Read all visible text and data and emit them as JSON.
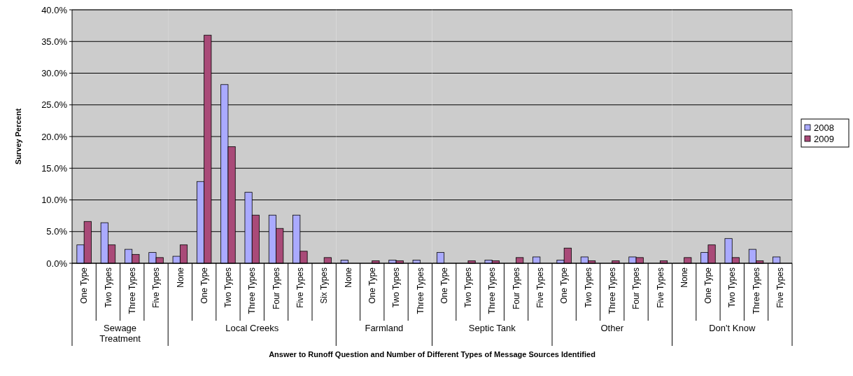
{
  "chart_data": [
    {
      "type": "bar",
      "xlabel": "Sewage Treatment",
      "ylabel": "Survey Percent",
      "categories": [
        "One Type",
        "Two Types",
        "Three Types",
        "Five Types"
      ],
      "series": [
        {
          "color": "#aaaaff",
          "values": [
            2.9,
            6.4,
            2.2,
            1.7
          ]
        },
        {
          "color": "#a94a78",
          "values": [
            6.6,
            2.9,
            1.4,
            0.9
          ]
        }
      ],
      "annotations": [
        "Answer to Runoff Question and Number of Different Types of Message Sources Identified"
      ],
      "ylim": [
        0,
        40
      ],
      "yticks": [
        {
          "value": 0,
          "label": "0.0%"
        },
        {
          "value": 5,
          "label": "5.0%"
        },
        {
          "value": 10,
          "label": "10.0%"
        },
        {
          "value": 15,
          "label": "15.0%"
        },
        {
          "value": 20,
          "label": "20.0%"
        },
        {
          "value": 25,
          "label": "25.0%"
        },
        {
          "value": 30,
          "label": "30.0%"
        },
        {
          "value": 35,
          "label": "35.0%"
        },
        {
          "value": 40,
          "label": "40.0%"
        }
      ],
      "grid": "y"
    },
    {
      "type": "bar",
      "xlabel": "Local Creeks",
      "categories": [
        "None",
        "One Type",
        "Two Types",
        "Three Types",
        "Four Types",
        "Five Types",
        "Six Types"
      ],
      "series": [
        {
          "color": "#aaaaff",
          "values": [
            1.1,
            12.9,
            28.2,
            11.2,
            7.6,
            7.6,
            0
          ]
        },
        {
          "color": "#a94a78",
          "values": [
            2.9,
            36.0,
            18.4,
            7.6,
            5.5,
            1.9,
            0.9
          ]
        }
      ],
      "ylim": [
        0,
        40
      ],
      "yticks": [
        0,
        5,
        10,
        15,
        20,
        25,
        30,
        35,
        40
      ],
      "grid": "y",
      "tick_labels": "x"
    },
    {
      "type": "bar",
      "xlabel": "Farmland",
      "categories": [
        "None",
        "One Type",
        "Two Types",
        "Three Types"
      ],
      "series": [
        {
          "color": "#aaaaff",
          "values": [
            0.5,
            0,
            0.5,
            0.5
          ]
        },
        {
          "color": "#a94a78",
          "values": [
            0,
            0.4,
            0.4,
            0
          ]
        }
      ],
      "ylim": [
        0,
        40
      ],
      "yticks": [
        0,
        5,
        10,
        15,
        20,
        25,
        30,
        35,
        40
      ],
      "grid": "y",
      "tick_labels": "x"
    },
    {
      "type": "bar",
      "xlabel": "Septic Tank",
      "categories": [
        "One Type",
        "Two Types",
        "Three Types",
        "Four Types",
        "Five Types"
      ],
      "series": [
        {
          "color": "#aaaaff",
          "values": [
            1.7,
            0,
            0.5,
            0,
            1.0
          ]
        },
        {
          "color": "#a94a78",
          "values": [
            0,
            0.4,
            0.4,
            0.9,
            0
          ]
        }
      ],
      "ylim": [
        0,
        40
      ],
      "yticks": [
        0,
        5,
        10,
        15,
        20,
        25,
        30,
        35,
        40
      ],
      "grid": "y",
      "tick_labels": "x"
    },
    {
      "type": "bar",
      "xlabel": "Other",
      "categories": [
        "One Type",
        "Two Types",
        "Three Types",
        "Four Types",
        "Five Types"
      ],
      "series": [
        {
          "color": "#aaaaff",
          "values": [
            0.5,
            1.0,
            0,
            1.0,
            0
          ]
        },
        {
          "color": "#a94a78",
          "values": [
            2.4,
            0.4,
            0.4,
            0.9,
            0.4
          ]
        }
      ],
      "ylim": [
        0,
        40
      ],
      "yticks": [
        0,
        5,
        10,
        15,
        20,
        25,
        30,
        35,
        40
      ],
      "grid": "y",
      "tick_labels": "x"
    },
    {
      "type": "bar",
      "xlabel": "Don't Know",
      "categories": [
        "None",
        "One Type",
        "Two Types",
        "Three Types",
        "Five Types"
      ],
      "series": [
        {
          "name": "2008",
          "color": "#aaaaff",
          "values": [
            0,
            1.7,
            3.9,
            2.2,
            1.0
          ]
        },
        {
          "name": "2009",
          "color": "#a94a78",
          "values": [
            0.9,
            2.9,
            0.9,
            0.4,
            0
          ]
        }
      ],
      "ylim": [
        0,
        40
      ],
      "yticks": [
        0,
        5,
        10,
        15,
        20,
        25,
        30,
        35,
        40
      ],
      "grid": "y",
      "tick_labels": "x",
      "legend": "right"
    }
  ]
}
